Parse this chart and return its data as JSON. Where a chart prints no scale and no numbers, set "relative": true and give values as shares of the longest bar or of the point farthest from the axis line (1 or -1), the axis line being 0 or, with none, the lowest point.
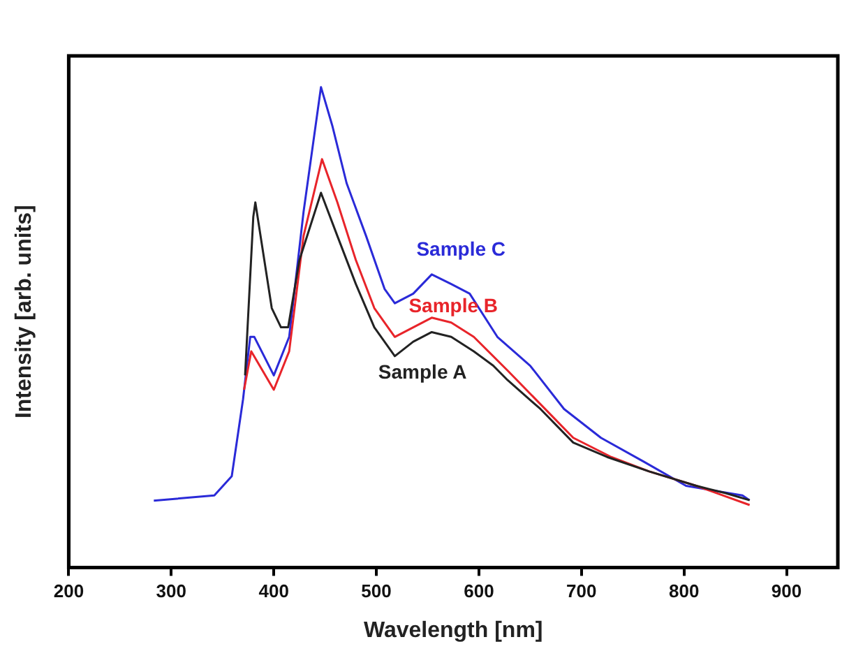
{
  "chart_data": {
    "type": "line",
    "xlabel": "Wavelength [nm]",
    "ylabel": "Intensity [arb. units]",
    "relative": true,
    "xlim": [
      200,
      950
    ],
    "xticks": [
      200,
      300,
      400,
      500,
      600,
      700,
      800,
      900
    ],
    "grid": false,
    "legend": false,
    "marker": "none",
    "line_style": "solid",
    "series": [
      {
        "name": "Sample A",
        "color": "#222222",
        "x": [
          372,
          380,
          382,
          398,
          407,
          414,
          425,
          446,
          462,
          480,
          498,
          518,
          536,
          554,
          573,
          595,
          614,
          628,
          660,
          692,
          725,
          766,
          812,
          840,
          864
        ],
        "values": [
          0.4,
          0.73,
          0.76,
          0.54,
          0.5,
          0.5,
          0.64,
          0.78,
          0.69,
          0.59,
          0.5,
          0.44,
          0.47,
          0.49,
          0.48,
          0.45,
          0.42,
          0.39,
          0.33,
          0.26,
          0.23,
          0.2,
          0.17,
          0.155,
          0.14
        ]
      },
      {
        "name": "Sample B",
        "color": "#e8242a",
        "x": [
          371,
          378,
          400,
          415,
          429,
          447,
          462,
          480,
          498,
          518,
          536,
          554,
          573,
          595,
          628,
          660,
          692,
          729,
          766,
          812,
          864
        ],
        "values": [
          0.37,
          0.45,
          0.37,
          0.45,
          0.69,
          0.85,
          0.76,
          0.64,
          0.54,
          0.48,
          0.5,
          0.52,
          0.51,
          0.48,
          0.41,
          0.34,
          0.27,
          0.23,
          0.2,
          0.17,
          0.13
        ]
      },
      {
        "name": "Sample C",
        "color": "#2a2ad8",
        "x": [
          283,
          342,
          359,
          370,
          377,
          381,
          400,
          415,
          429,
          446,
          457,
          471,
          490,
          508,
          518,
          536,
          554,
          573,
          591,
          618,
          650,
          683,
          719,
          761,
          802,
          857,
          864
        ],
        "values": [
          0.139,
          0.15,
          0.19,
          0.35,
          0.48,
          0.48,
          0.4,
          0.48,
          0.74,
          1,
          0.92,
          0.8,
          0.69,
          0.58,
          0.55,
          0.57,
          0.61,
          0.59,
          0.57,
          0.48,
          0.42,
          0.33,
          0.27,
          0.22,
          0.17,
          0.15,
          0.14
        ]
      }
    ]
  }
}
